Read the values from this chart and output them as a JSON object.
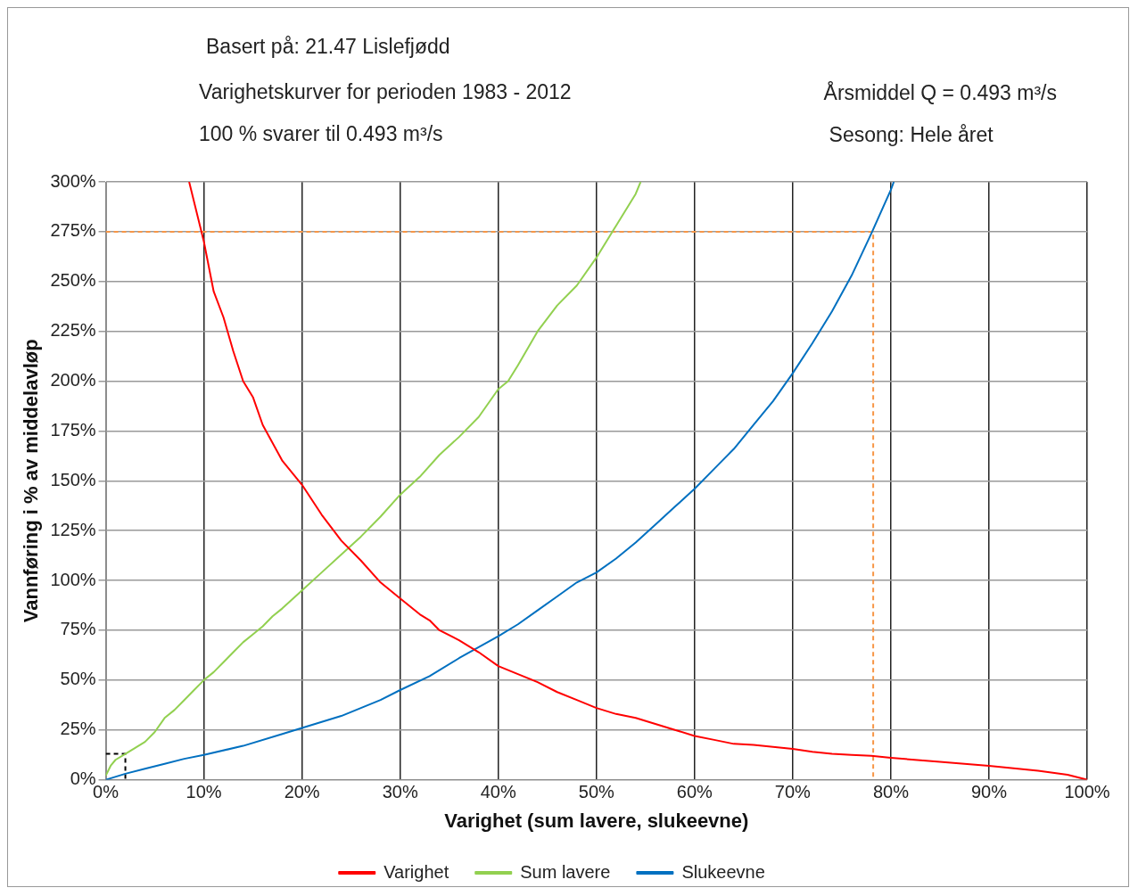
{
  "chart_data": {
    "type": "line",
    "title": "Basert på: 21.47  Lislefjødd",
    "subtitle": "Varighetskurver for perioden 1983 - 2012",
    "annotations": [
      "100 % svarer til 0.493 m³/s",
      "Årsmiddel Q = 0.493 m³/s",
      "Sesong: Hele året"
    ],
    "xlabel": "Varighet (sum lavere, slukeevne)",
    "ylabel": "Vannføring i % av middelavløp",
    "xlim": [
      0,
      100
    ],
    "ylim": [
      0,
      300
    ],
    "xticks": [
      {
        "value": 0,
        "label": "0%"
      },
      {
        "value": 10,
        "label": "10%"
      },
      {
        "value": 20,
        "label": "20%"
      },
      {
        "value": 30,
        "label": "30%"
      },
      {
        "value": 40,
        "label": "40%"
      },
      {
        "value": 50,
        "label": "50%"
      },
      {
        "value": 60,
        "label": "60%"
      },
      {
        "value": 70,
        "label": "70%"
      },
      {
        "value": 80,
        "label": "80%"
      },
      {
        "value": 90,
        "label": "90%"
      },
      {
        "value": 100,
        "label": "100%"
      }
    ],
    "yticks": [
      {
        "value": 0,
        "label": "0%"
      },
      {
        "value": 25,
        "label": "25%"
      },
      {
        "value": 50,
        "label": "50%"
      },
      {
        "value": 75,
        "label": "75%"
      },
      {
        "value": 100,
        "label": "100%"
      },
      {
        "value": 125,
        "label": "125%"
      },
      {
        "value": 150,
        "label": "150%"
      },
      {
        "value": 175,
        "label": "175%"
      },
      {
        "value": 200,
        "label": "200%"
      },
      {
        "value": 225,
        "label": "225%"
      },
      {
        "value": 250,
        "label": "250%"
      },
      {
        "value": 275,
        "label": "275%"
      },
      {
        "value": 300,
        "label": "300%"
      }
    ],
    "grid": true,
    "legend": "bottom",
    "marker": "none",
    "line_style": "solid",
    "series": [
      {
        "name": "Varighet",
        "color": "#ff0000",
        "x": [
          8.5,
          10,
          11,
          12,
          13,
          14,
          15,
          16,
          18,
          20,
          22,
          24,
          26,
          28,
          30,
          32,
          33,
          34,
          36,
          38,
          40,
          42,
          44,
          46,
          48,
          50,
          52,
          54,
          56,
          58,
          60,
          62,
          64,
          66,
          68,
          70,
          72,
          74,
          76,
          78,
          80,
          85,
          90,
          95,
          98,
          100
        ],
        "values": [
          300,
          270,
          245,
          232,
          215,
          200,
          192,
          178,
          160,
          148,
          133,
          120,
          110,
          99,
          91,
          83,
          80,
          75,
          70,
          64,
          57,
          53,
          49,
          44,
          40,
          36,
          33,
          31,
          28,
          25,
          22,
          20,
          18,
          17.5,
          16.5,
          15.5,
          14,
          13,
          12.5,
          12,
          11,
          9,
          7,
          4.5,
          2.5,
          0
        ]
      },
      {
        "name": "Sum lavere",
        "color": "#92d050",
        "x": [
          0,
          0.5,
          1,
          2,
          3,
          4,
          5,
          6,
          7,
          8,
          9,
          10,
          11,
          12,
          13,
          14,
          15,
          16,
          17,
          18,
          20,
          22,
          24,
          26,
          28,
          30,
          32,
          34,
          36,
          38,
          40,
          41,
          42,
          44,
          46,
          48,
          50,
          52,
          54,
          54.5
        ],
        "values": [
          2,
          7,
          10,
          13,
          16,
          19,
          24,
          31,
          35,
          40,
          45,
          50,
          54,
          59,
          64,
          69,
          73,
          77,
          82,
          86,
          95,
          104,
          113,
          122,
          132,
          143,
          152,
          163,
          172,
          182,
          196,
          200,
          208,
          225,
          238,
          248,
          262,
          278,
          294,
          300
        ]
      },
      {
        "name": "Slukeevne",
        "color": "#0070c0",
        "x": [
          0,
          2,
          4,
          6,
          8,
          10,
          14,
          18,
          20,
          24,
          28,
          30,
          33,
          36,
          40,
          42,
          44,
          46,
          48,
          50,
          52,
          54,
          56,
          58,
          60,
          62,
          64,
          66,
          68,
          70,
          72,
          74,
          76,
          78,
          80,
          80.3
        ],
        "values": [
          0,
          3,
          5.5,
          8,
          10.5,
          12.5,
          17,
          23,
          26,
          32,
          40,
          45,
          52,
          61,
          72,
          78,
          85,
          92,
          99,
          104,
          111,
          119,
          128,
          137,
          146,
          156,
          166,
          178,
          190,
          204,
          219,
          235,
          253,
          274,
          296,
          300
        ]
      },
      {
        "color": "#f79646",
        "line_style": "dashed",
        "x": [
          0,
          78.2,
          78.2
        ],
        "values": [
          275,
          275,
          0
        ]
      },
      {
        "color": "#000000",
        "line_style": "dashed",
        "x": [
          0,
          2,
          2
        ],
        "values": [
          13,
          13,
          0
        ]
      }
    ]
  }
}
